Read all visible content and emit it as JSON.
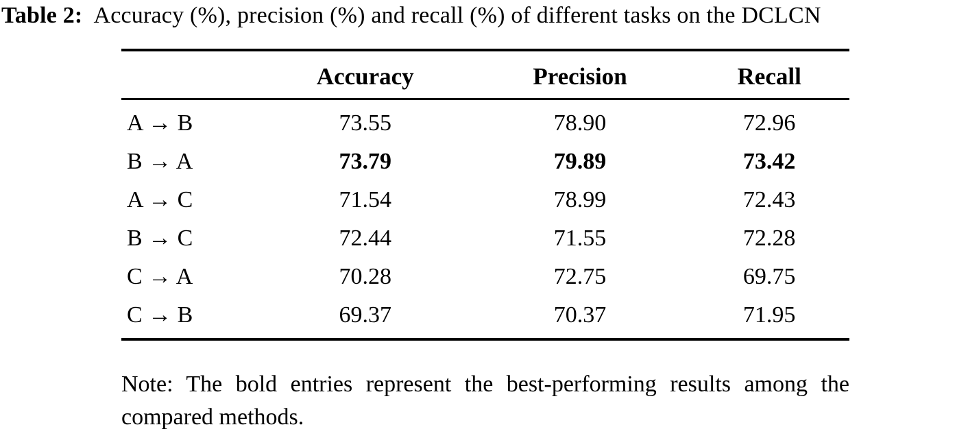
{
  "caption": {
    "label": "Table 2:",
    "text": "Accuracy (%), precision (%) and recall (%) of different tasks on the DCLCN"
  },
  "table": {
    "columns": [
      "",
      "Accuracy",
      "Precision",
      "Recall"
    ],
    "rows": [
      {
        "task": "A → B",
        "accuracy": "73.55",
        "precision": "78.90",
        "recall": "72.96",
        "bold": false
      },
      {
        "task": "B → A",
        "accuracy": "73.79",
        "precision": "79.89",
        "recall": "73.42",
        "bold": true
      },
      {
        "task": "A → C",
        "accuracy": "71.54",
        "precision": "78.99",
        "recall": "72.43",
        "bold": false
      },
      {
        "task": "B → C",
        "accuracy": "72.44",
        "precision": "71.55",
        "recall": "72.28",
        "bold": false
      },
      {
        "task": "C → A",
        "accuracy": "70.28",
        "precision": "72.75",
        "recall": "69.75",
        "bold": false
      },
      {
        "task": "C → B",
        "accuracy": "69.37",
        "precision": "70.37",
        "recall": "71.95",
        "bold": false
      }
    ]
  },
  "note": "Note: The bold entries represent the best-performing results among the compared methods.",
  "colors": {
    "text": "#000000",
    "background": "#ffffff",
    "rule": "#000000"
  }
}
